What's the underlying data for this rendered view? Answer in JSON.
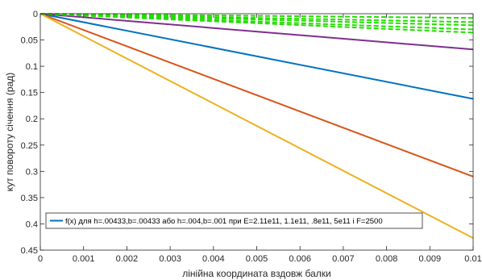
{
  "chart_data": {
    "type": "line",
    "xlabel": "лінійна координата вздовж балки",
    "ylabel": "кут повороту січення (рад)",
    "xlim": [
      0,
      0.01
    ],
    "ylim": [
      0.45,
      0
    ],
    "y_reversed": true,
    "x_ticks": [
      "0",
      "0.001",
      "0.002",
      "0.003",
      "0.004",
      "0.005",
      "0.006",
      "0.007",
      "0.008",
      "0.009",
      "0.01"
    ],
    "y_ticks": [
      "0",
      "0.05",
      "0.1",
      "0.15",
      "0.2",
      "0.25",
      "0.3",
      "0.35",
      "0.4",
      "0.45"
    ],
    "grid": false,
    "legend_location": "bottom-left",
    "legend_entries": [
      "f(x) для h=.00433,b=.00433 або h=.004,b=.001 при E=2.11e11, 1.1e11, .8e11, 5e11 і F=2500"
    ],
    "series": [
      {
        "color": "#0072BD",
        "style": "solid",
        "x": [
          0,
          0.01
        ],
        "y": [
          0,
          0.162
        ]
      },
      {
        "color": "#D95319",
        "style": "solid",
        "x": [
          0,
          0.01
        ],
        "y": [
          0,
          0.31
        ]
      },
      {
        "color": "#EDB120",
        "style": "solid",
        "x": [
          0,
          0.01
        ],
        "y": [
          0,
          0.427
        ]
      },
      {
        "color": "#7E2F8E",
        "style": "solid",
        "x": [
          0,
          0.01
        ],
        "y": [
          0,
          0.068
        ]
      },
      {
        "color": "#22DD00",
        "style": "dashed",
        "x": [
          0,
          0.01
        ],
        "y": [
          0,
          0.008
        ]
      },
      {
        "color": "#22DD00",
        "style": "dashed",
        "x": [
          0,
          0.01
        ],
        "y": [
          0,
          0.016
        ]
      },
      {
        "color": "#22DD00",
        "style": "dashed",
        "x": [
          0,
          0.01
        ],
        "y": [
          0,
          0.022
        ]
      },
      {
        "color": "#22DD00",
        "style": "dashed",
        "x": [
          0,
          0.01
        ],
        "y": [
          0,
          0.03
        ]
      },
      {
        "color": "#22DD00",
        "style": "dashed",
        "x": [
          0,
          0.01
        ],
        "y": [
          0,
          0.036
        ]
      }
    ]
  }
}
